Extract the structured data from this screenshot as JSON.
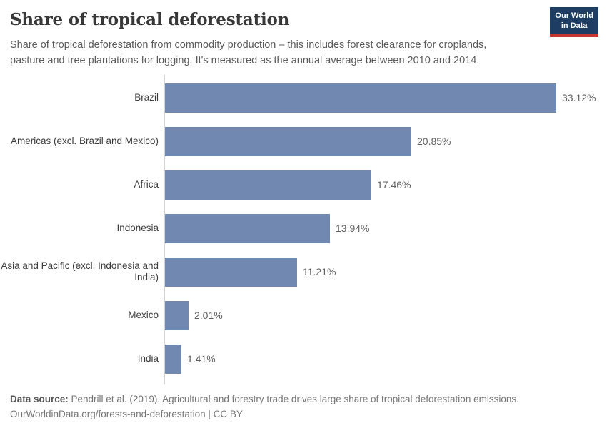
{
  "header": {
    "title": "Share of tropical deforestation",
    "subtitle": "Share of tropical deforestation from commodity production – this includes forest clearance for croplands, pasture and tree plantations for logging. It's measured as the annual average between 2010 and 2014.",
    "logo": {
      "line1": "Our World",
      "line2": "in Data"
    }
  },
  "chart_data": {
    "type": "bar",
    "orientation": "horizontal",
    "title": "Share of tropical deforestation",
    "categories": [
      "Brazil",
      "Americas (excl. Brazil and Mexico)",
      "Africa",
      "Indonesia",
      "Asia and Pacific (excl. Indonesia and India)",
      "Mexico",
      "India"
    ],
    "values": [
      33.12,
      20.85,
      17.46,
      13.94,
      11.21,
      2.01,
      1.41
    ],
    "value_labels": [
      "33.12%",
      "20.85%",
      "17.46%",
      "13.94%",
      "11.21%",
      "2.01%",
      "1.41%"
    ],
    "unit": "%",
    "xlim": [
      0,
      33.12
    ],
    "grid": false,
    "legend": false,
    "bar_color": "#7189b0",
    "axis_color": "#d4d4d4"
  },
  "footer": {
    "data_source_label": "Data source:",
    "data_source_text": " Pendrill et al. (2019). Agricultural and forestry trade drives large share of tropical deforestation emissions.",
    "attribution": "OurWorldinData.org/forests-and-deforestation | CC BY"
  },
  "colors": {
    "bar": "#7189b0",
    "logo_navy": "#1d3d63",
    "logo_red": "#c5372d",
    "title_text": "#383838",
    "subtitle_text": "#5b5b5b",
    "axis_line": "#d4d4d4"
  }
}
